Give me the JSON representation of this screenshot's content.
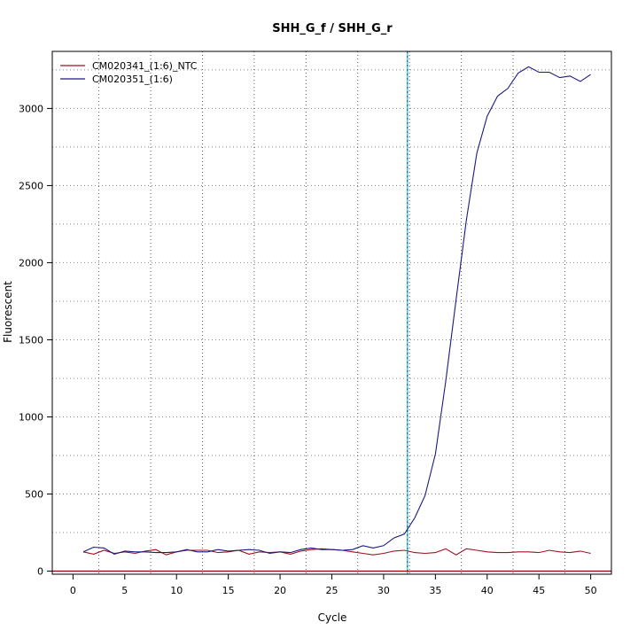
{
  "chart_data": {
    "type": "line",
    "title": "SHH_G_f / SHH_G_r",
    "xlabel": "Cycle",
    "ylabel": "Fluorescent",
    "xlim": [
      -2,
      52
    ],
    "ylim": [
      -20,
      3370
    ],
    "x_ticks": [
      0,
      5,
      10,
      15,
      20,
      25,
      30,
      35,
      40,
      45,
      50
    ],
    "y_ticks": [
      0,
      500,
      1000,
      1500,
      2000,
      2500,
      3000
    ],
    "x_minor_grid": [
      2.5,
      7.5,
      12.5,
      17.5,
      22.5,
      27.5,
      32.5,
      37.5,
      42.5,
      47.5
    ],
    "y_grid": [
      0,
      250,
      500,
      750,
      1000,
      1250,
      1500,
      1750,
      2000,
      2250,
      2500,
      2750,
      3000,
      3250
    ],
    "grid": true,
    "legend_position": "top-left",
    "threshold_cycle": 32.3,
    "threshold_color": "#00c8e0",
    "baseline_color": "#8b0000",
    "series": [
      {
        "name": "CM020341_(1:6)_NTC",
        "color": "#a01020",
        "x": [
          1,
          2,
          3,
          4,
          5,
          6,
          7,
          8,
          9,
          10,
          11,
          12,
          13,
          14,
          15,
          16,
          17,
          18,
          19,
          20,
          21,
          22,
          23,
          24,
          25,
          26,
          27,
          28,
          29,
          30,
          31,
          32,
          33,
          34,
          35,
          36,
          37,
          38,
          39,
          40,
          41,
          42,
          43,
          44,
          45,
          46,
          47,
          48,
          49,
          50
        ],
        "values": [
          125,
          110,
          135,
          115,
          125,
          115,
          130,
          140,
          105,
          125,
          135,
          135,
          135,
          120,
          125,
          135,
          110,
          125,
          120,
          125,
          110,
          130,
          140,
          145,
          140,
          135,
          125,
          115,
          105,
          115,
          130,
          135,
          120,
          115,
          120,
          145,
          105,
          145,
          135,
          125,
          120,
          120,
          125,
          125,
          120,
          135,
          125,
          120,
          130,
          115
        ]
      },
      {
        "name": "CM020351_(1:6)",
        "color": "#1a1a80",
        "x": [
          1,
          2,
          3,
          4,
          5,
          6,
          7,
          8,
          9,
          10,
          11,
          12,
          13,
          14,
          15,
          16,
          17,
          18,
          19,
          20,
          21,
          22,
          23,
          24,
          25,
          26,
          27,
          28,
          29,
          30,
          31,
          32,
          33,
          34,
          35,
          36,
          37,
          38,
          39,
          40,
          41,
          42,
          43,
          44,
          45,
          46,
          47,
          48,
          49,
          50
        ],
        "values": [
          125,
          155,
          150,
          110,
          130,
          125,
          125,
          120,
          120,
          125,
          140,
          125,
          125,
          140,
          130,
          135,
          140,
          135,
          115,
          125,
          120,
          140,
          150,
          140,
          140,
          135,
          140,
          165,
          150,
          165,
          215,
          240,
          345,
          490,
          760,
          1230,
          1760,
          2280,
          2710,
          2950,
          3080,
          3130,
          3230,
          3270,
          3235,
          3235,
          3200,
          3210,
          3175,
          3220
        ]
      }
    ]
  }
}
